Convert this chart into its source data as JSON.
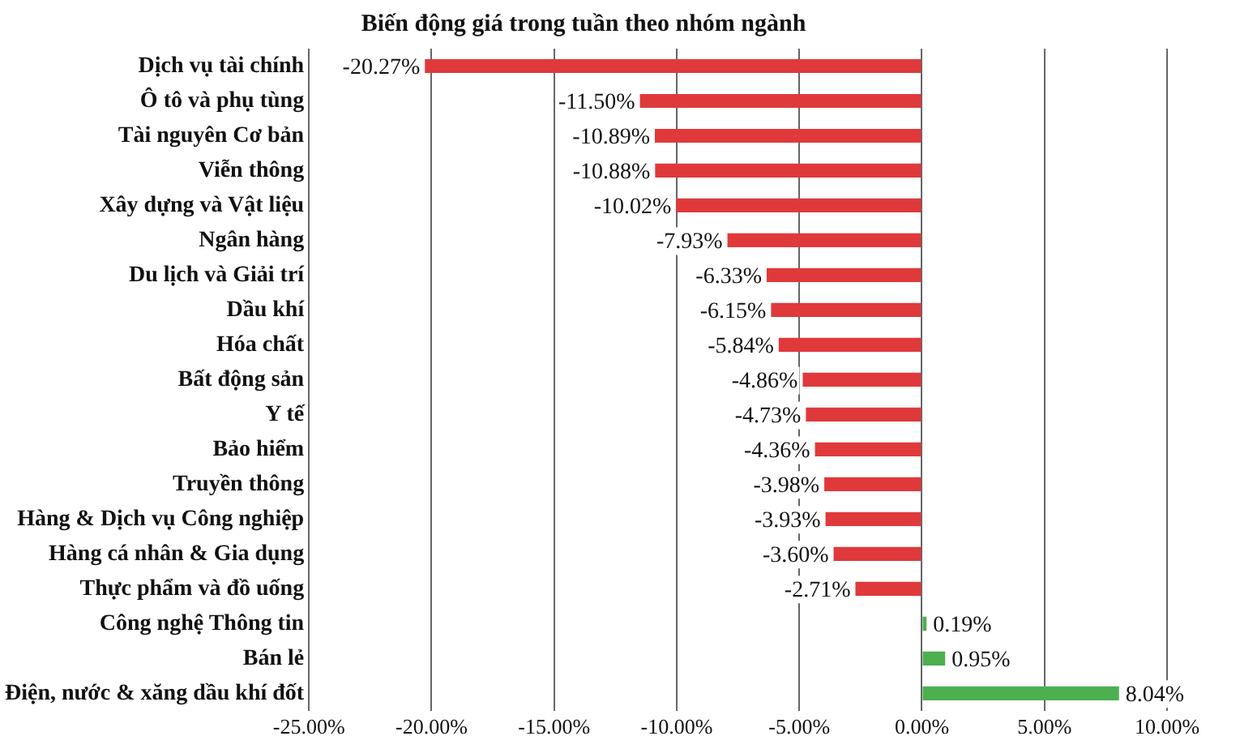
{
  "chart_data": {
    "type": "bar",
    "orientation": "horizontal",
    "title": "Biến động giá trong tuần theo nhóm ngành",
    "categories": [
      "Dịch vụ tài chính",
      "Ô tô và phụ tùng",
      "Tài nguyên Cơ bản",
      "Viễn thông",
      "Xây dựng và Vật liệu",
      "Ngân hàng",
      "Du lịch và Giải trí",
      "Dầu khí",
      "Hóa chất",
      "Bất động sản",
      "Y tế",
      "Bảo hiểm",
      "Truyền thông",
      "Hàng & Dịch vụ Công nghiệp",
      "Hàng cá nhân & Gia dụng",
      "Thực phẩm và đồ uống",
      "Công nghệ Thông tin",
      "Bán lẻ",
      "Điện, nước & xăng dầu khí đốt"
    ],
    "values": [
      -20.27,
      -11.5,
      -10.89,
      -10.88,
      -10.02,
      -7.93,
      -6.33,
      -6.15,
      -5.84,
      -4.86,
      -4.73,
      -4.36,
      -3.98,
      -3.93,
      -3.6,
      -2.71,
      0.19,
      0.95,
      8.04
    ],
    "value_labels": [
      "-20.27%",
      "-11.50%",
      "-10.89%",
      "-10.88%",
      "-10.02%",
      "-7.93%",
      "-6.33%",
      "-6.15%",
      "-5.84%",
      "-4.86%",
      "-4.73%",
      "-4.36%",
      "-3.98%",
      "-3.93%",
      "-3.60%",
      "-2.71%",
      "0.19%",
      "0.95%",
      "8.04%"
    ],
    "colors": [
      "#e0393b",
      "#e0393b",
      "#e0393b",
      "#e0393b",
      "#e0393b",
      "#e0393b",
      "#e0393b",
      "#e0393b",
      "#e0393b",
      "#e0393b",
      "#e0393b",
      "#e0393b",
      "#e0393b",
      "#e0393b",
      "#e0393b",
      "#e0393b",
      "#4caf50",
      "#4caf50",
      "#4caf50"
    ],
    "xlim": [
      -25,
      10
    ],
    "xticks": [
      {
        "value": -25,
        "label": "-25.00%"
      },
      {
        "value": -20,
        "label": "-20.00%"
      },
      {
        "value": -15,
        "label": "-15.00%"
      },
      {
        "value": -10,
        "label": "-10.00%"
      },
      {
        "value": -5,
        "label": "-5.00%"
      },
      {
        "value": 0,
        "label": "0.00%"
      },
      {
        "value": 5,
        "label": "5.00%"
      },
      {
        "value": 10,
        "label": "10.00%"
      }
    ],
    "grid": "x",
    "legend": false
  }
}
